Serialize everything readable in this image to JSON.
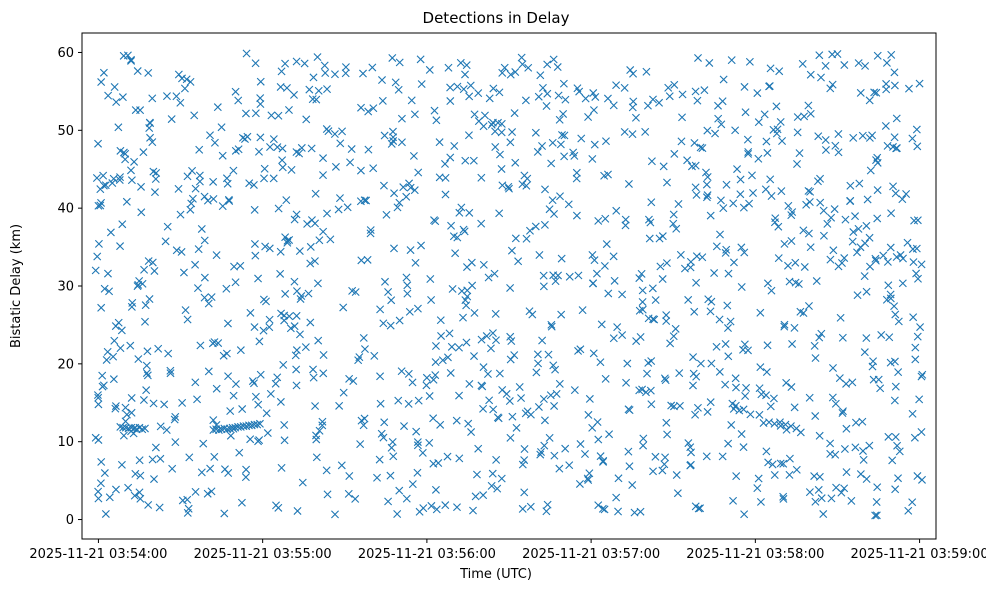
{
  "chart_data": {
    "type": "scatter",
    "title": "Detections in Delay",
    "xlabel": "Time (UTC)",
    "ylabel": "Bistatic Delay (km)",
    "x_unit": "seconds since 2025-11-21 03:54:00",
    "xlim": [
      -6,
      306
    ],
    "ylim": [
      -2.5,
      62.5
    ],
    "x_ticks": [
      {
        "value": 0,
        "label": "2025-11-21 03:54:00"
      },
      {
        "value": 60,
        "label": "2025-11-21 03:55:00"
      },
      {
        "value": 120,
        "label": "2025-11-21 03:56:00"
      },
      {
        "value": 180,
        "label": "2025-11-21 03:57:00"
      },
      {
        "value": 240,
        "label": "2025-11-21 03:58:00"
      },
      {
        "value": 300,
        "label": "2025-11-21 03:59:00"
      }
    ],
    "y_ticks": [
      {
        "value": 0,
        "label": "0"
      },
      {
        "value": 10,
        "label": "10"
      },
      {
        "value": 20,
        "label": "20"
      },
      {
        "value": 30,
        "label": "30"
      },
      {
        "value": 40,
        "label": "40"
      },
      {
        "value": 50,
        "label": "50"
      },
      {
        "value": 60,
        "label": "60"
      }
    ],
    "marker": "x",
    "grid": false,
    "series": [
      {
        "name": "detections",
        "color": "#1f77b4",
        "x_range": [
          -1,
          301
        ],
        "y_range": [
          0.5,
          60
        ],
        "approx_count": 1350,
        "sample_seed": 20251121,
        "note": "points uniformly scattered over the plotted region; values below are representative track clusters",
        "points": [
          [
            -1,
            32.0
          ],
          [
            -1,
            10.5
          ],
          [
            0,
            40.3
          ],
          [
            0,
            14.8
          ],
          [
            0,
            2.7
          ],
          [
            1,
            27.2
          ],
          [
            1,
            56.2
          ],
          [
            2,
            57.4
          ],
          [
            2,
            42.9
          ],
          [
            3,
            20.5
          ],
          [
            8,
            11.9
          ],
          [
            9,
            11.8
          ],
          [
            10,
            11.8
          ],
          [
            11,
            11.7
          ],
          [
            12,
            11.8
          ],
          [
            13,
            11.7
          ],
          [
            14,
            11.6
          ],
          [
            15,
            11.8
          ],
          [
            16,
            11.6
          ],
          [
            17,
            11.7
          ],
          [
            42,
            11.5
          ],
          [
            43,
            11.6
          ],
          [
            44,
            11.5
          ],
          [
            45,
            11.6
          ],
          [
            46,
            11.7
          ],
          [
            47,
            11.6
          ],
          [
            48,
            11.7
          ],
          [
            49,
            11.8
          ],
          [
            50,
            11.8
          ],
          [
            51,
            11.9
          ],
          [
            52,
            11.9
          ],
          [
            53,
            12.0
          ],
          [
            54,
            12.0
          ],
          [
            55,
            12.1
          ],
          [
            56,
            12.1
          ],
          [
            57,
            12.2
          ],
          [
            58,
            12.2
          ],
          [
            59,
            12.3
          ],
          [
            150,
            42.5
          ],
          [
            160,
            18.9
          ],
          [
            175,
            55.4
          ],
          [
            190,
            5.3
          ],
          [
            205,
            36.1
          ],
          [
            220,
            47.8
          ],
          [
            230,
            24.6
          ],
          [
            243,
            12.4
          ],
          [
            245,
            12.5
          ],
          [
            247,
            12.3
          ],
          [
            249,
            12.5
          ],
          [
            251,
            12.2
          ],
          [
            253,
            12.0
          ],
          [
            255,
            11.7
          ],
          [
            260,
            42.1
          ],
          [
            270,
            59.8
          ],
          [
            280,
            21.5
          ],
          [
            290,
            7.6
          ],
          [
            298,
            38.4
          ],
          [
            299,
            50.1
          ],
          [
            300,
            56.0
          ],
          [
            301,
            18.6
          ]
        ]
      }
    ]
  }
}
